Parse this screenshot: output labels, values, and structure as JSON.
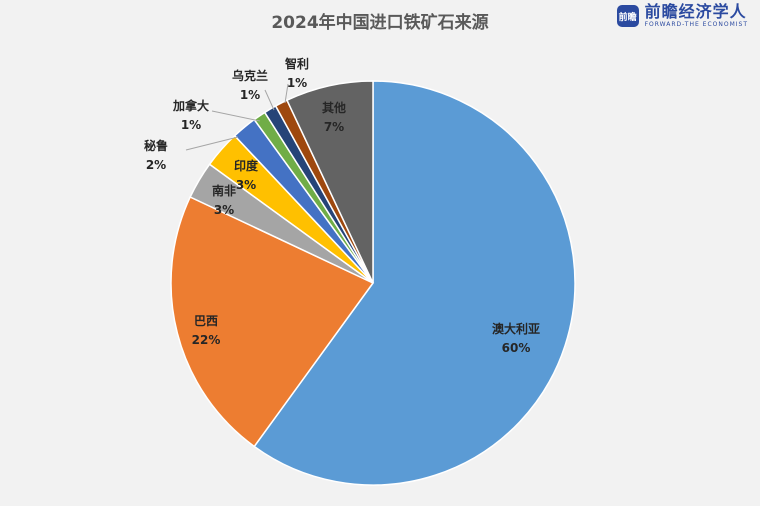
{
  "logo": {
    "mark": "前瞻",
    "name": "前瞻经济学人",
    "subtitle": "FORWARD-THE ECONOMIST"
  },
  "chart_data": {
    "type": "pie",
    "title": "2024年中国进口铁矿石来源",
    "slices": [
      {
        "name": "澳大利亚",
        "value": 60,
        "label": "60%",
        "color": "#5b9bd5"
      },
      {
        "name": "巴西",
        "value": 22,
        "label": "22%",
        "color": "#ed7d31"
      },
      {
        "name": "南非",
        "value": 3,
        "label": "3%",
        "color": "#a5a5a5"
      },
      {
        "name": "印度",
        "value": 3,
        "label": "3%",
        "color": "#ffc000"
      },
      {
        "name": "秘鲁",
        "value": 2,
        "label": "2%",
        "color": "#4472c4"
      },
      {
        "name": "加拿大",
        "value": 1,
        "label": "1%",
        "color": "#70ad47"
      },
      {
        "name": "乌克兰",
        "value": 1,
        "label": "1%",
        "color": "#264478"
      },
      {
        "name": "智利",
        "value": 1,
        "label": "1%",
        "color": "#9e480e"
      },
      {
        "name": "其他",
        "value": 7,
        "label": "7%",
        "color": "#636363"
      }
    ]
  }
}
